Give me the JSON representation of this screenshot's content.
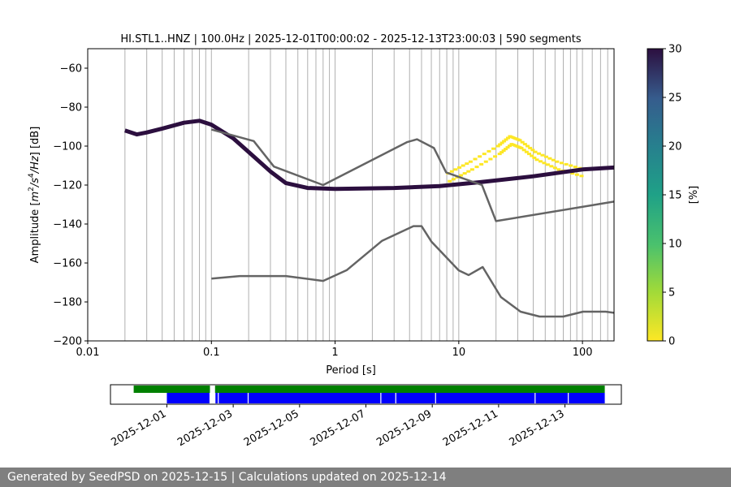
{
  "chart_data": [
    {
      "type": "heatmap",
      "title": "HI.STL1..HNZ | 100.0Hz | 2025-12-01T00:00:02 - 2025-12-13T23:00:03 | 590 segments",
      "xlabel": "Period [s]",
      "ylabel_main": "Amplitude [",
      "ylabel_math": "m",
      "ylabel_sup1": "2",
      "ylabel_mid": "/s",
      "ylabel_sup2": "4",
      "ylabel_tail": "/Hz",
      "ylabel_end": "] [dB]",
      "x_scale": "log",
      "xlim": [
        0.01,
        180
      ],
      "ylim": [
        -200,
        -50
      ],
      "x_ticks": [
        0.01,
        0.1,
        1,
        10,
        100
      ],
      "x_tick_labels": [
        "0.01",
        "0.1",
        "1",
        "10",
        "100"
      ],
      "y_ticks": [
        -200,
        -180,
        -160,
        -140,
        -120,
        -100,
        -80,
        -60
      ],
      "y_tick_labels": [
        "−200",
        "−180",
        "−160",
        "−140",
        "−120",
        "−100",
        "−80",
        "−60"
      ],
      "grid_periods": [
        0.02,
        0.03,
        0.04,
        0.05,
        0.06,
        0.07,
        0.08,
        0.09,
        0.1,
        0.2,
        0.3,
        0.4,
        0.5,
        0.6,
        0.7,
        0.8,
        0.9,
        1,
        2,
        3,
        4,
        5,
        6,
        7,
        8,
        9,
        10,
        20,
        30,
        40,
        50,
        60,
        70,
        80,
        90,
        100,
        120,
        140,
        160
      ],
      "colorbar": {
        "label": "[%]",
        "range": [
          0,
          30
        ],
        "ticks": [
          0,
          5,
          10,
          15,
          20,
          25,
          30
        ]
      },
      "series": [
        {
          "name": "Peterson NHNM",
          "color": "#646464",
          "points": [
            [
              0.1,
              -168
            ],
            [
              0.17,
              -166.7
            ],
            [
              0.4,
              -166.7
            ],
            [
              0.8,
              -169.2
            ],
            [
              1.24,
              -163.7
            ],
            [
              2.4,
              -148.6
            ],
            [
              4.3,
              -141.1
            ],
            [
              5.0,
              -141.1
            ],
            [
              6.0,
              -149.0
            ],
            [
              10.0,
              -163.8
            ],
            [
              12.0,
              -166.2
            ],
            [
              15.6,
              -162.1
            ],
            [
              21.9,
              -177.5
            ],
            [
              31.6,
              -185.0
            ],
            [
              45.0,
              -187.5
            ],
            [
              70.0,
              -187.5
            ],
            [
              101.0,
              -185.0
            ],
            [
              154.0,
              -185.0
            ],
            [
              180.0,
              -185.6
            ]
          ]
        },
        {
          "name": "Peterson NLNM",
          "color": "#646464",
          "points": [
            [
              0.1,
              -91.5
            ],
            [
              0.22,
              -97.4
            ],
            [
              0.32,
              -110.5
            ],
            [
              0.8,
              -120.0
            ],
            [
              3.8,
              -98.0
            ],
            [
              4.6,
              -96.5
            ],
            [
              6.3,
              -101.0
            ],
            [
              7.9,
              -113.5
            ],
            [
              15.4,
              -120.0
            ],
            [
              20.0,
              -138.5
            ],
            [
              180.0,
              -128.5
            ]
          ]
        }
      ],
      "mode_line": {
        "color": "#2c0f3f",
        "points": [
          [
            0.02,
            -92
          ],
          [
            0.025,
            -94
          ],
          [
            0.03,
            -93
          ],
          [
            0.04,
            -91
          ],
          [
            0.06,
            -88
          ],
          [
            0.08,
            -87
          ],
          [
            0.1,
            -89
          ],
          [
            0.15,
            -96
          ],
          [
            0.2,
            -103
          ],
          [
            0.3,
            -113
          ],
          [
            0.4,
            -119
          ],
          [
            0.6,
            -121.5
          ],
          [
            1,
            -122
          ],
          [
            3,
            -121.5
          ],
          [
            7,
            -120.5
          ],
          [
            15,
            -118.5
          ],
          [
            40,
            -115.5
          ],
          [
            100,
            -112
          ],
          [
            180,
            -111
          ]
        ]
      },
      "density_band": {
        "lower": [
          [
            0.02,
            -100
          ],
          [
            0.05,
            -99
          ],
          [
            0.1,
            -102
          ],
          [
            0.2,
            -113
          ],
          [
            0.4,
            -123
          ],
          [
            1,
            -123
          ],
          [
            10,
            -123
          ],
          [
            20,
            -120
          ],
          [
            100,
            -114
          ],
          [
            180,
            -113
          ]
        ],
        "upper": [
          [
            0.02,
            -85
          ],
          [
            0.05,
            -88
          ],
          [
            0.08,
            -84
          ],
          [
            0.1,
            -86
          ],
          [
            0.2,
            -94
          ],
          [
            0.4,
            -112
          ],
          [
            1,
            -118
          ],
          [
            3,
            -115
          ],
          [
            10,
            -115
          ],
          [
            20,
            -106
          ],
          [
            60,
            -110
          ],
          [
            180,
            -108
          ]
        ]
      },
      "secondary_hump": [
        [
          7.9,
          -114
        ],
        [
          12,
          -108
        ],
        [
          20,
          -100
        ],
        [
          25,
          -95
        ],
        [
          30,
          -97
        ],
        [
          40,
          -103
        ],
        [
          60,
          -108
        ],
        [
          100,
          -112
        ]
      ]
    },
    {
      "type": "timeline",
      "x_tick_labels": [
        "2025-12-01",
        "2025-12-03",
        "2025-12-05",
        "2025-12-07",
        "2025-12-09",
        "2025-12-11",
        "2025-12-13"
      ],
      "x_tick_days": [
        1,
        3,
        5,
        7,
        9,
        11,
        13
      ],
      "day_range": [
        -0.7,
        14.7
      ],
      "top_bar": {
        "color": "#008000",
        "segments": [
          [
            0.0,
            2.3
          ],
          [
            2.45,
            14.2
          ]
        ]
      },
      "bottom_bar": {
        "color": "#0000ff",
        "start": 1.0,
        "end": 14.2,
        "gaps": [
          2.3,
          2.45,
          2.55,
          3.45,
          7.45,
          7.9,
          9.1,
          12.1,
          13.1
        ]
      }
    }
  ],
  "footer": {
    "text": "Generated by SeedPSD on 2025-12-15 | Calculations updated on 2025-12-14"
  }
}
